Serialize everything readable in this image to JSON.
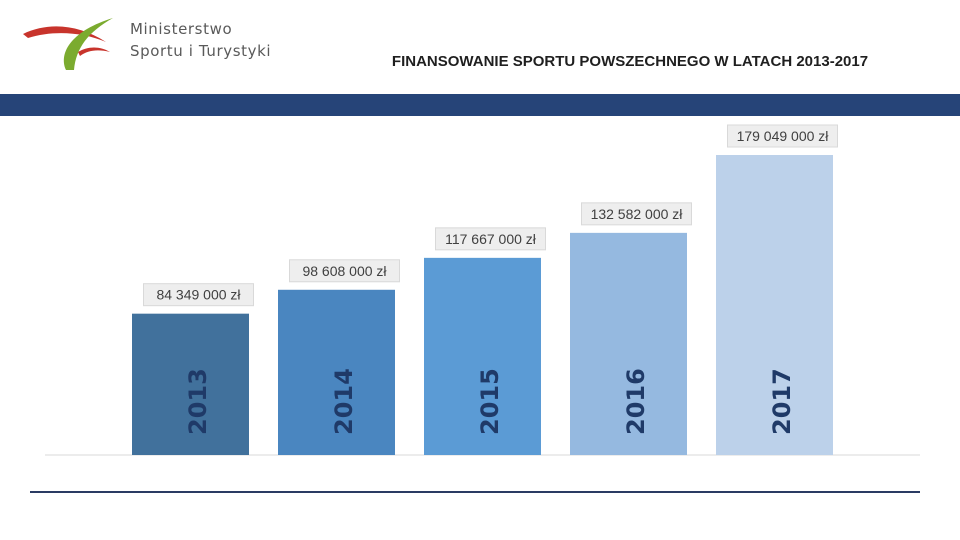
{
  "header": {
    "logo_line1": "Ministerstwo",
    "logo_line2": "Sportu i Turystyki",
    "title": "FINANSOWANIE SPORTU POWSZECHNEGO W LATACH 2013-2017"
  },
  "colors": {
    "band": "#264478",
    "bars": [
      "#41719c",
      "#4a86c0",
      "#5b9bd5",
      "#95b9e0",
      "#bcd1ea"
    ],
    "logo_green": "#7bab2f",
    "logo_red": "#c8342c"
  },
  "chart_data": {
    "type": "bar",
    "title": "FINANSOWANIE SPORTU POWSZECHNEGO W LATACH 2013-2017",
    "categories": [
      "2013",
      "2014",
      "2015",
      "2016",
      "2017"
    ],
    "values": [
      84349000,
      98608000,
      117667000,
      132582000,
      179049000
    ],
    "data_labels": [
      "84 349 000 zł",
      "98 608 000 zł",
      "117 667 000 zł",
      "132 582 000 zł",
      "179 049 000 zł"
    ],
    "xlabel": "",
    "ylabel": "",
    "ylim": [
      0,
      200000000
    ],
    "grid": false,
    "legend": "none",
    "category_labels_position": "inside-bar-vertical"
  }
}
